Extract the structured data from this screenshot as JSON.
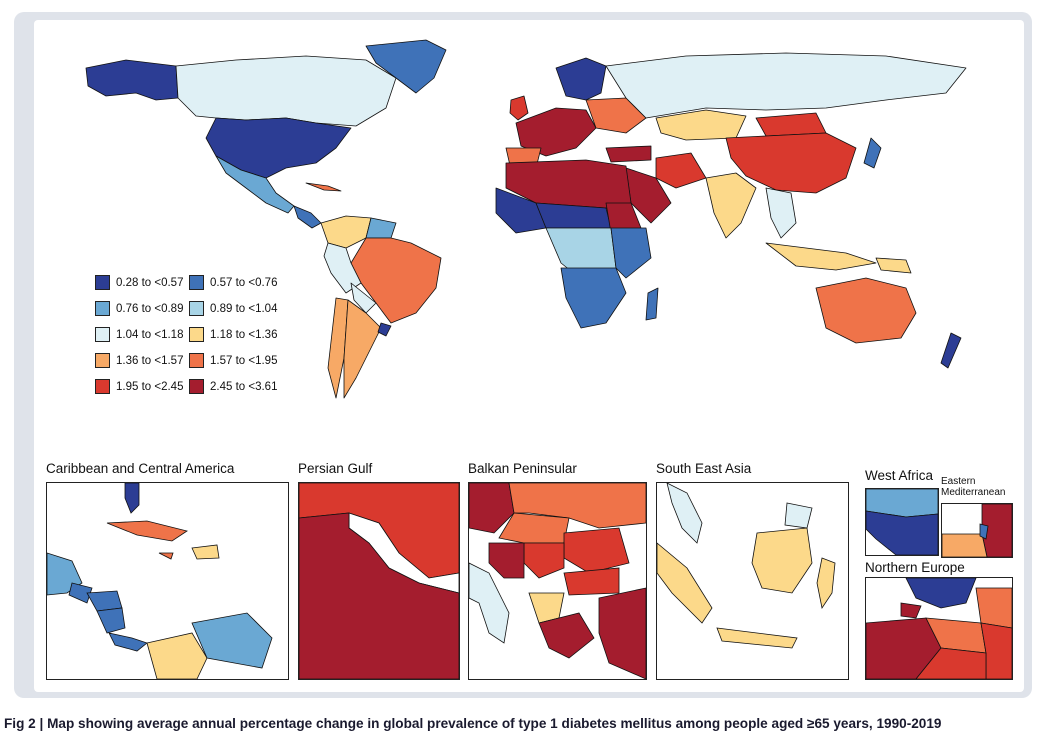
{
  "legend": [
    {
      "label": "0.28 to <0.57",
      "color": "#2c3d94"
    },
    {
      "label": "0.57 to <0.76",
      "color": "#3f72b8"
    },
    {
      "label": "0.76 to <0.89",
      "color": "#6aa8d3"
    },
    {
      "label": "0.89 to <1.04",
      "color": "#a8d4e6"
    },
    {
      "label": "1.04 to <1.18",
      "color": "#dff0f5"
    },
    {
      "label": "1.18 to <1.36",
      "color": "#fcd98a"
    },
    {
      "label": "1.36 to <1.57",
      "color": "#f7a966"
    },
    {
      "label": "1.57 to <1.95",
      "color": "#ef7349"
    },
    {
      "label": "1.95 to <2.45",
      "color": "#d9392e"
    },
    {
      "label": "2.45 to <3.61",
      "color": "#a41d2e"
    }
  ],
  "insets": {
    "caribbean": "Caribbean and Central America",
    "persian_gulf": "Persian Gulf",
    "balkan": "Balkan Peninsular",
    "south_east_asia": "South East Asia",
    "west_africa": "West Africa",
    "eastern_mediterranean_line1": "Eastern",
    "eastern_mediterranean_line2": "Mediterranean",
    "northern_europe": "Northern Europe"
  },
  "caption": "Fig 2 | Map showing average annual percentage change in global prevalence of type 1 diabetes mellitus among people aged ≥65 years, 1990-2019"
}
